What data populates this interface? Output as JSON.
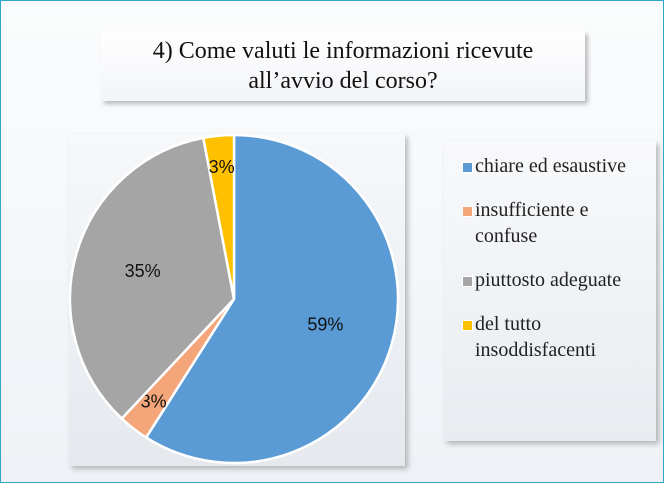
{
  "chart_data": {
    "type": "pie",
    "title": "4) Come valuti le informazioni ricevute all’avvio del corso?",
    "categories": [
      "chiare ed esaustive",
      "insufficiente e confuse",
      "piuttosto adeguate",
      "del tutto insoddisfacenti"
    ],
    "values": [
      59,
      3,
      35,
      3
    ],
    "value_labels": [
      "59%",
      "3%",
      "35%",
      "3%"
    ],
    "colors": [
      "#5b9bd5",
      "#f4a57a",
      "#a5a5a5",
      "#ffc000"
    ],
    "legend": "right"
  }
}
